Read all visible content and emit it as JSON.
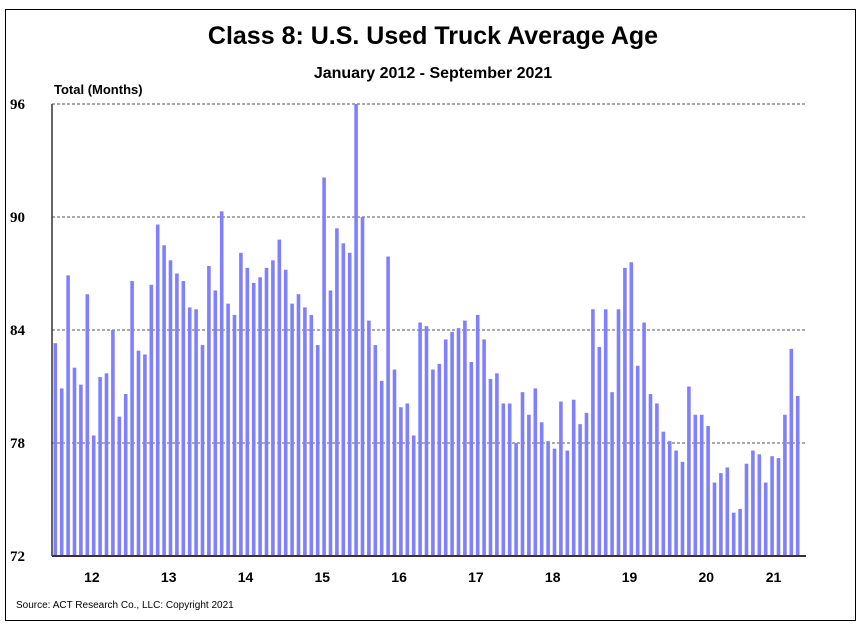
{
  "chart_data": {
    "type": "bar",
    "title": "Class 8: U.S. Used Truck Average Age",
    "subtitle": "January 2012 - September 2021",
    "ylabel": "Total (Months)",
    "xlabel": "",
    "ylim": [
      72,
      96
    ],
    "yticks": [
      72,
      78,
      84,
      90,
      96
    ],
    "grid": true,
    "bar_color": "#8080FF",
    "x_tick_labels": [
      "12",
      "13",
      "14",
      "15",
      "16",
      "17",
      "18",
      "19",
      "20",
      "21"
    ],
    "start": "2012-01",
    "end": "2021-09",
    "frequency": "monthly",
    "values": [
      83.3,
      80.9,
      86.9,
      82.0,
      81.1,
      85.9,
      78.4,
      81.5,
      81.7,
      84.0,
      79.4,
      80.6,
      86.6,
      82.9,
      82.7,
      86.4,
      89.6,
      88.5,
      87.7,
      87.0,
      86.6,
      85.2,
      85.1,
      83.2,
      87.4,
      86.1,
      90.3,
      85.4,
      84.8,
      88.1,
      87.3,
      86.5,
      86.8,
      87.3,
      87.7,
      88.8,
      87.2,
      85.4,
      85.9,
      85.2,
      84.8,
      83.2,
      92.1,
      86.1,
      89.4,
      88.6,
      88.1,
      96.0,
      90.0,
      84.5,
      83.2,
      81.3,
      87.9,
      81.9,
      79.9,
      80.1,
      78.4,
      84.4,
      84.2,
      81.9,
      82.2,
      83.5,
      83.9,
      84.1,
      84.5,
      82.3,
      84.8,
      83.5,
      81.4,
      81.7,
      80.1,
      80.1,
      78.0,
      80.7,
      79.5,
      80.9,
      79.1,
      78.1,
      77.7,
      80.2,
      77.6,
      80.3,
      79.0,
      79.6,
      85.1,
      83.1,
      85.1,
      80.7,
      85.1,
      87.3,
      87.6,
      82.1,
      84.4,
      80.6,
      80.1,
      78.6,
      78.1,
      77.6,
      77.0,
      81.0,
      79.5,
      79.5,
      78.9,
      75.9,
      76.4,
      76.7,
      74.3,
      74.5,
      76.9,
      77.6,
      77.4,
      75.9,
      77.3,
      77.2,
      79.5,
      83.0,
      80.5
    ]
  },
  "source": "Source: ACT Research Co., LLC: Copyright 2021"
}
